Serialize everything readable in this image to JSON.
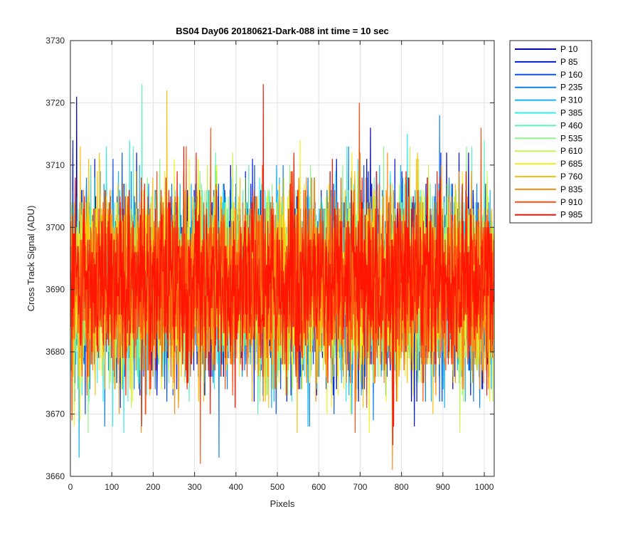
{
  "chart_data": {
    "type": "line",
    "title": "BS04 Day06 20180621-Dark-088 int time = 10 sec",
    "xlabel": "Pixels",
    "ylabel": "Cross Track Signal (ADU)",
    "xlim": [
      0,
      1024
    ],
    "ylim": [
      3660,
      3730
    ],
    "xticks": [
      0,
      100,
      200,
      300,
      400,
      500,
      600,
      700,
      800,
      900,
      1000
    ],
    "yticks": [
      3660,
      3670,
      3680,
      3690,
      3700,
      3710,
      3720,
      3730
    ],
    "grid": true,
    "legend_position": "outside-top-right",
    "samples_per_series": 1024,
    "noise_center": 3691,
    "series": [
      {
        "name": "P 10",
        "color": "#0000b4"
      },
      {
        "name": "P 85",
        "color": "#0019d8"
      },
      {
        "name": "P 160",
        "color": "#0a4ee6"
      },
      {
        "name": "P 235",
        "color": "#0d80f0"
      },
      {
        "name": "P 310",
        "color": "#16b4f5"
      },
      {
        "name": "P 385",
        "color": "#33ecee"
      },
      {
        "name": "P 460",
        "color": "#5ef0c0"
      },
      {
        "name": "P 535",
        "color": "#8ef58a"
      },
      {
        "name": "P 610",
        "color": "#c3f550"
      },
      {
        "name": "P 685",
        "color": "#f4f020"
      },
      {
        "name": "P 760",
        "color": "#fcc010"
      },
      {
        "name": "P 835",
        "color": "#ff8a10"
      },
      {
        "name": "P 910",
        "color": "#ff5010"
      },
      {
        "name": "P 985",
        "color": "#ff1500"
      }
    ],
    "annotations_peaks": [
      {
        "series": "P 985",
        "x": 465,
        "y": 3723
      },
      {
        "series": "P 460",
        "x": 172,
        "y": 3723
      },
      {
        "series": "P 760",
        "x": 232,
        "y": 3722
      },
      {
        "series": "P 10",
        "x": 14,
        "y": 3721
      },
      {
        "series": "P 910",
        "x": 697,
        "y": 3720
      },
      {
        "series": "P 835",
        "x": 777,
        "y": 3661
      },
      {
        "series": "P 910",
        "x": 313,
        "y": 3662
      },
      {
        "series": "P 310",
        "x": 20,
        "y": 3663
      }
    ]
  }
}
